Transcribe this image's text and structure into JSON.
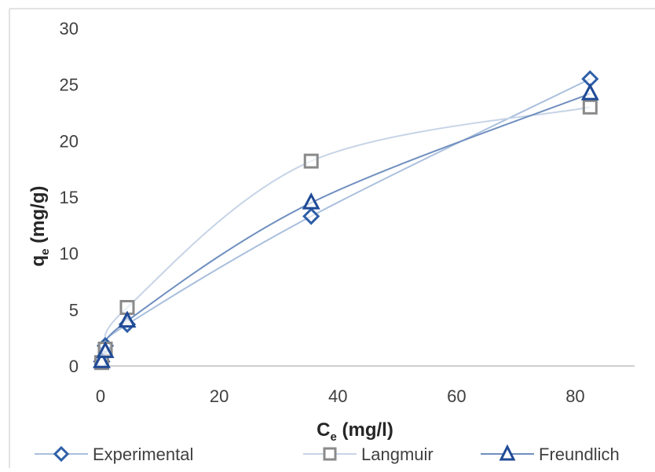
{
  "chart_data": {
    "type": "scatter",
    "xlabel": {
      "main": "C",
      "sub": "e",
      "rest": " (mg/l)"
    },
    "ylabel": {
      "main": "q",
      "sub": "e",
      "rest": " (mg/g)"
    },
    "xlim": [
      0,
      90
    ],
    "ylim": [
      0,
      30
    ],
    "x_ticks": [
      0,
      20,
      40,
      60,
      80
    ],
    "y_ticks": [
      0,
      5,
      10,
      15,
      20,
      25,
      30
    ],
    "grid": false,
    "legend_position": "bottom",
    "series": [
      {
        "name": "Experimental",
        "marker": "diamond",
        "color": "#2e5fa8",
        "line_color": "#a9bfdd",
        "x": [
          0.2,
          0.8,
          4.5,
          35.5,
          82.5
        ],
        "y": [
          0.4,
          1.8,
          3.7,
          13.3,
          25.5
        ]
      },
      {
        "name": "Langmuir",
        "marker": "square",
        "color": "#8a8a8a",
        "line_color": "#c6d4e6",
        "x": [
          0.2,
          0.8,
          4.5,
          35.5,
          82.5
        ],
        "y": [
          0.3,
          1.5,
          5.2,
          18.2,
          23.0
        ]
      },
      {
        "name": "Freundlich",
        "marker": "triangle",
        "color": "#1f4a96",
        "line_color": "#6f8fbf",
        "x": [
          0.2,
          0.8,
          4.5,
          35.5,
          82.5
        ],
        "y": [
          0.4,
          1.3,
          4.0,
          14.5,
          24.2
        ]
      }
    ]
  }
}
